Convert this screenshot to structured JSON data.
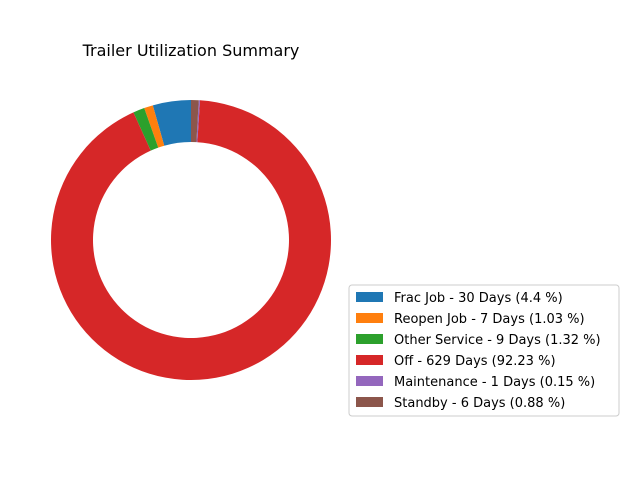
{
  "chart_data": {
    "type": "pie",
    "variant": "donut",
    "title": "Trailer Utilization Summary",
    "start_angle_deg": 90,
    "direction": "counterclockwise",
    "legend_position": "lower-right",
    "slices": [
      {
        "label": "Frac Job - 30 Days (4.4 %)",
        "value": 30,
        "percent": 4.4,
        "color": "#1f77b4"
      },
      {
        "label": "Reopen Job - 7 Days (1.03 %)",
        "value": 7,
        "percent": 1.03,
        "color": "#ff7f0e"
      },
      {
        "label": "Other Service - 9 Days (1.32 %)",
        "value": 9,
        "percent": 1.32,
        "color": "#2ca02c"
      },
      {
        "label": "Off - 629 Days (92.23 %)",
        "value": 629,
        "percent": 92.23,
        "color": "#d62728"
      },
      {
        "label": "Maintenance - 1 Days (0.15 %)",
        "value": 1,
        "percent": 0.15,
        "color": "#9467bd"
      },
      {
        "label": "Standby - 6 Days (0.88 %)",
        "value": 6,
        "percent": 0.88,
        "color": "#8c564b"
      }
    ]
  }
}
